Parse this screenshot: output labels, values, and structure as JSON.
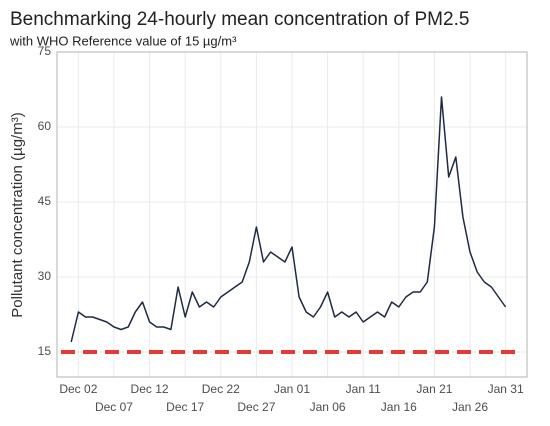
{
  "chart_data": {
    "type": "line",
    "title": "Benchmarking 24-hourly mean concentration of PM2.5",
    "subtitle": "with WHO Reference value of 15 µg/m³",
    "y_label": "Pollutant concentration (µg/m³)",
    "x": [
      "Dec 01",
      "Dec 02",
      "Dec 03",
      "Dec 04",
      "Dec 05",
      "Dec 06",
      "Dec 07",
      "Dec 08",
      "Dec 09",
      "Dec 10",
      "Dec 11",
      "Dec 12",
      "Dec 13",
      "Dec 14",
      "Dec 15",
      "Dec 16",
      "Dec 17",
      "Dec 18",
      "Dec 19",
      "Dec 20",
      "Dec 21",
      "Dec 22",
      "Dec 23",
      "Dec 24",
      "Dec 25",
      "Dec 26",
      "Dec 27",
      "Dec 28",
      "Dec 29",
      "Dec 30",
      "Dec 31",
      "Jan 01",
      "Jan 02",
      "Jan 03",
      "Jan 04",
      "Jan 05",
      "Jan 06",
      "Jan 07",
      "Jan 08",
      "Jan 09",
      "Jan 10",
      "Jan 11",
      "Jan 12",
      "Jan 13",
      "Jan 14",
      "Jan 15",
      "Jan 16",
      "Jan 17",
      "Jan 18",
      "Jan 19",
      "Jan 20",
      "Jan 21",
      "Jan 22",
      "Jan 23",
      "Jan 24",
      "Jan 25",
      "Jan 26",
      "Jan 27",
      "Jan 28",
      "Jan 29",
      "Jan 30",
      "Jan 31"
    ],
    "series": [
      {
        "name": "PM2.5",
        "color": "#1f2a44",
        "values": [
          17,
          23,
          22,
          22,
          21.5,
          21,
          20,
          19.5,
          20,
          23,
          25,
          21,
          20,
          20,
          19.5,
          28,
          22,
          27,
          24,
          25,
          24,
          26,
          27,
          28,
          29,
          33,
          40,
          33,
          35,
          34,
          33,
          36,
          26,
          23,
          22,
          24,
          27,
          22,
          23,
          22,
          23,
          21,
          22,
          23,
          22,
          25,
          24,
          26,
          27,
          27,
          29,
          40,
          66,
          50,
          54,
          42,
          35,
          31,
          29,
          28,
          26,
          24
        ]
      }
    ],
    "reference": {
      "value": 15,
      "color": "#e53935"
    },
    "xlim": [
      "Nov 29",
      "Feb 03"
    ],
    "xticks": [
      "Dec 02",
      "Dec 07",
      "Dec 12",
      "Dec 17",
      "Dec 22",
      "Dec 27",
      "Jan 01",
      "Jan 06",
      "Jan 11",
      "Jan 16",
      "Jan 21",
      "Jan 26",
      "Jan 31"
    ],
    "ylim": [
      10,
      75
    ],
    "yticks": [
      15,
      30,
      45,
      60,
      75
    ],
    "grid": true
  }
}
